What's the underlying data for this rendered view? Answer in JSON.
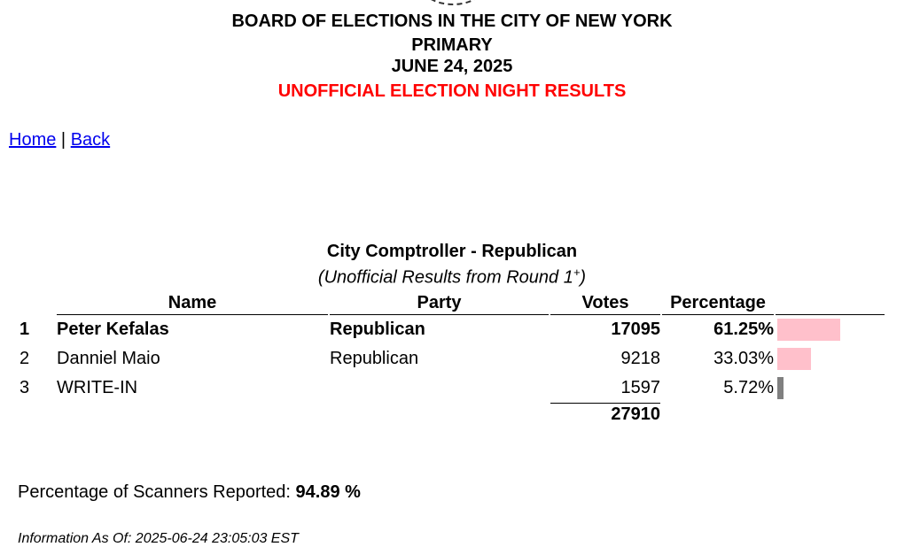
{
  "header": {
    "org": "BOARD OF ELECTIONS IN THE CITY OF NEW YORK",
    "election": "PRIMARY",
    "date": "JUNE 24, 2025",
    "status": "UNOFFICIAL ELECTION NIGHT RESULTS",
    "status_color": "#ff0000"
  },
  "nav": {
    "home": "Home",
    "sep": "|",
    "back": "Back"
  },
  "contest": {
    "title": "City Comptroller - Republican",
    "subtitle": "(Unofficial Results from Round 1",
    "subtitle_sup": "+",
    "subtitle_end": ")",
    "columns": [
      "Name",
      "Party",
      "Votes",
      "Percentage"
    ],
    "rows": [
      {
        "rank": "1",
        "name": "Peter Kefalas",
        "party": "Republican",
        "votes": "17095",
        "pct": "61.25%",
        "pct_value": 61.25,
        "bar_color": "#ffc0cb"
      },
      {
        "rank": "2",
        "name": "Danniel Maio",
        "party": "Republican",
        "votes": "9218",
        "pct": "33.03%",
        "pct_value": 33.03,
        "bar_color": "#ffc0cb"
      },
      {
        "rank": "3",
        "name": "WRITE-IN",
        "party": "",
        "votes": "1597",
        "pct": "5.72%",
        "pct_value": 5.72,
        "bar_color": "#808080"
      }
    ],
    "total": "27910"
  },
  "scanners": {
    "label": "Percentage of Scanners Reported:",
    "value": "94.89 %"
  },
  "info": "Information As Of: 2025-06-24 23:05:03 EST"
}
